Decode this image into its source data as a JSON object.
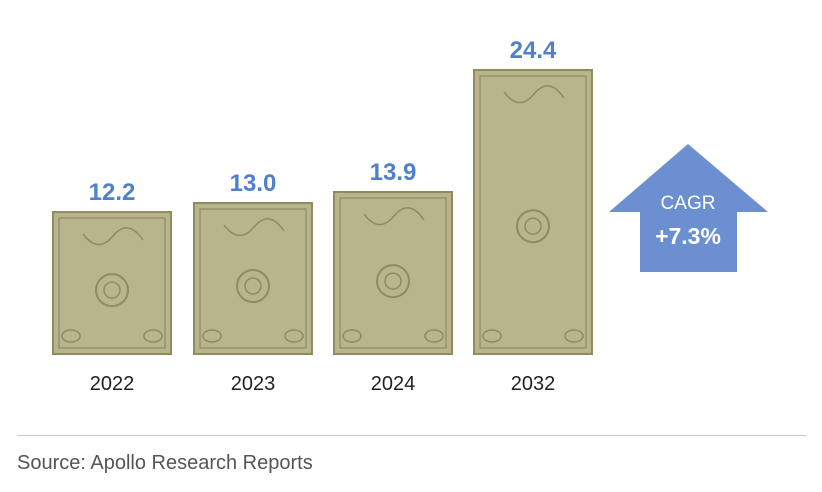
{
  "chart_data": {
    "type": "bar",
    "categories": [
      "2022",
      "2023",
      "2024",
      "2032"
    ],
    "values": [
      12.2,
      13.0,
      13.9,
      24.4
    ],
    "value_labels": [
      "12.2",
      "13.0",
      "13.9",
      "24.4"
    ],
    "ylim": [
      0,
      24.4
    ],
    "grid": false,
    "legend": "none",
    "bar_style": "dollar-bill",
    "annotation": {
      "label": "CAGR",
      "value": "+7.3%",
      "shape": "up-arrow"
    },
    "colors": {
      "bar_fill": "#b8b58c",
      "bar_edge": "#8e8b5e",
      "value_label": "#4f7fcd",
      "arrow": "#6b8fd0"
    }
  },
  "footer": {
    "source": "Source: Apollo Research Reports"
  }
}
